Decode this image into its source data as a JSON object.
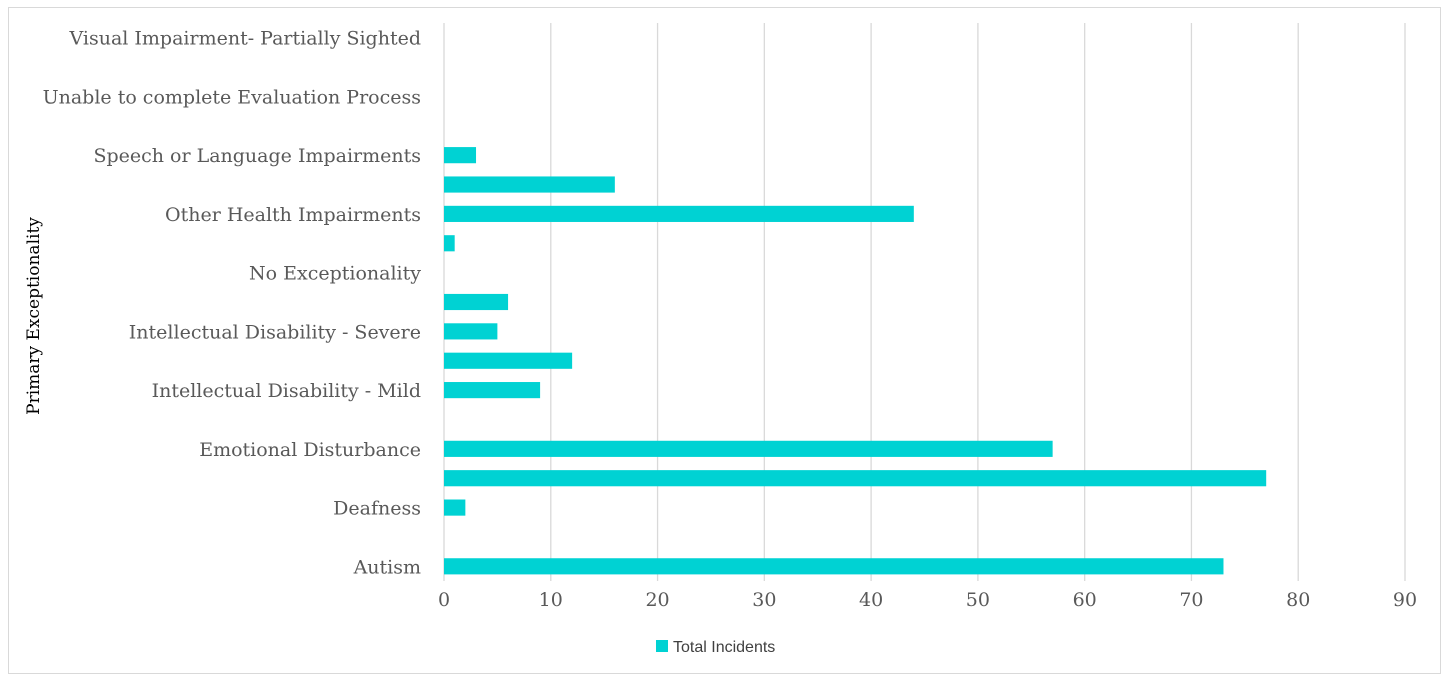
{
  "chart_data": {
    "type": "bar",
    "orientation": "horizontal",
    "ylabel": "Primary Exceptionality",
    "xlabel": "",
    "xlim": [
      0,
      90
    ],
    "xticks": [
      0,
      10,
      20,
      30,
      40,
      50,
      60,
      70,
      80,
      90
    ],
    "grid": true,
    "legend_position": "bottom",
    "categories": [
      "Autism",
      "",
      "Deafness",
      "",
      "Emotional Disturbance",
      "",
      "Intellectual Disability - Mild",
      "",
      "Intellectual Disability - Severe",
      "",
      "No Exceptionality",
      "",
      "Other Health Impairments",
      "",
      "Speech or Language Impairments",
      "",
      "Unable to complete Evaluation Process",
      "",
      "Visual Impairment- Partially Sighted"
    ],
    "series": [
      {
        "name": "Total Incidents",
        "color": "#00d2d3",
        "values": [
          73,
          0,
          2,
          77,
          57,
          0,
          9,
          12,
          5,
          6,
          0,
          1,
          44,
          16,
          3,
          0,
          0,
          0,
          0
        ]
      }
    ]
  }
}
